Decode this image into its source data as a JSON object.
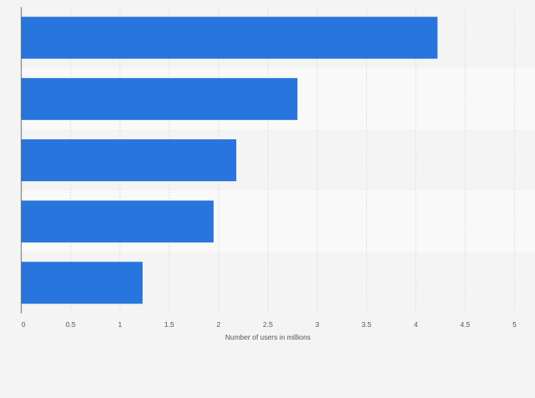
{
  "chart_data": {
    "type": "bar",
    "orientation": "horizontal",
    "categories": [
      "",
      "",
      "",
      "",
      ""
    ],
    "values": [
      4.22,
      2.8,
      2.18,
      1.95,
      1.23
    ],
    "title": "",
    "xlabel": "Number of users in millions",
    "ylabel": "",
    "xlim": [
      0,
      5
    ],
    "x_ticks": [
      0,
      0.5,
      1,
      1.5,
      2,
      2.5,
      3,
      3.5,
      4,
      4.5,
      5
    ],
    "x_tick_labels": [
      "0",
      "0.5",
      "1",
      "1.5",
      "2",
      "2.5",
      "3",
      "3.5",
      "4",
      "4.5",
      "5"
    ],
    "grid": true,
    "bar_color": "#2876dd",
    "band_colors": [
      "#f4f4f4",
      "#f9f9f9"
    ],
    "gridline_color": "#d7d7d7",
    "axis_color": "#555555"
  }
}
